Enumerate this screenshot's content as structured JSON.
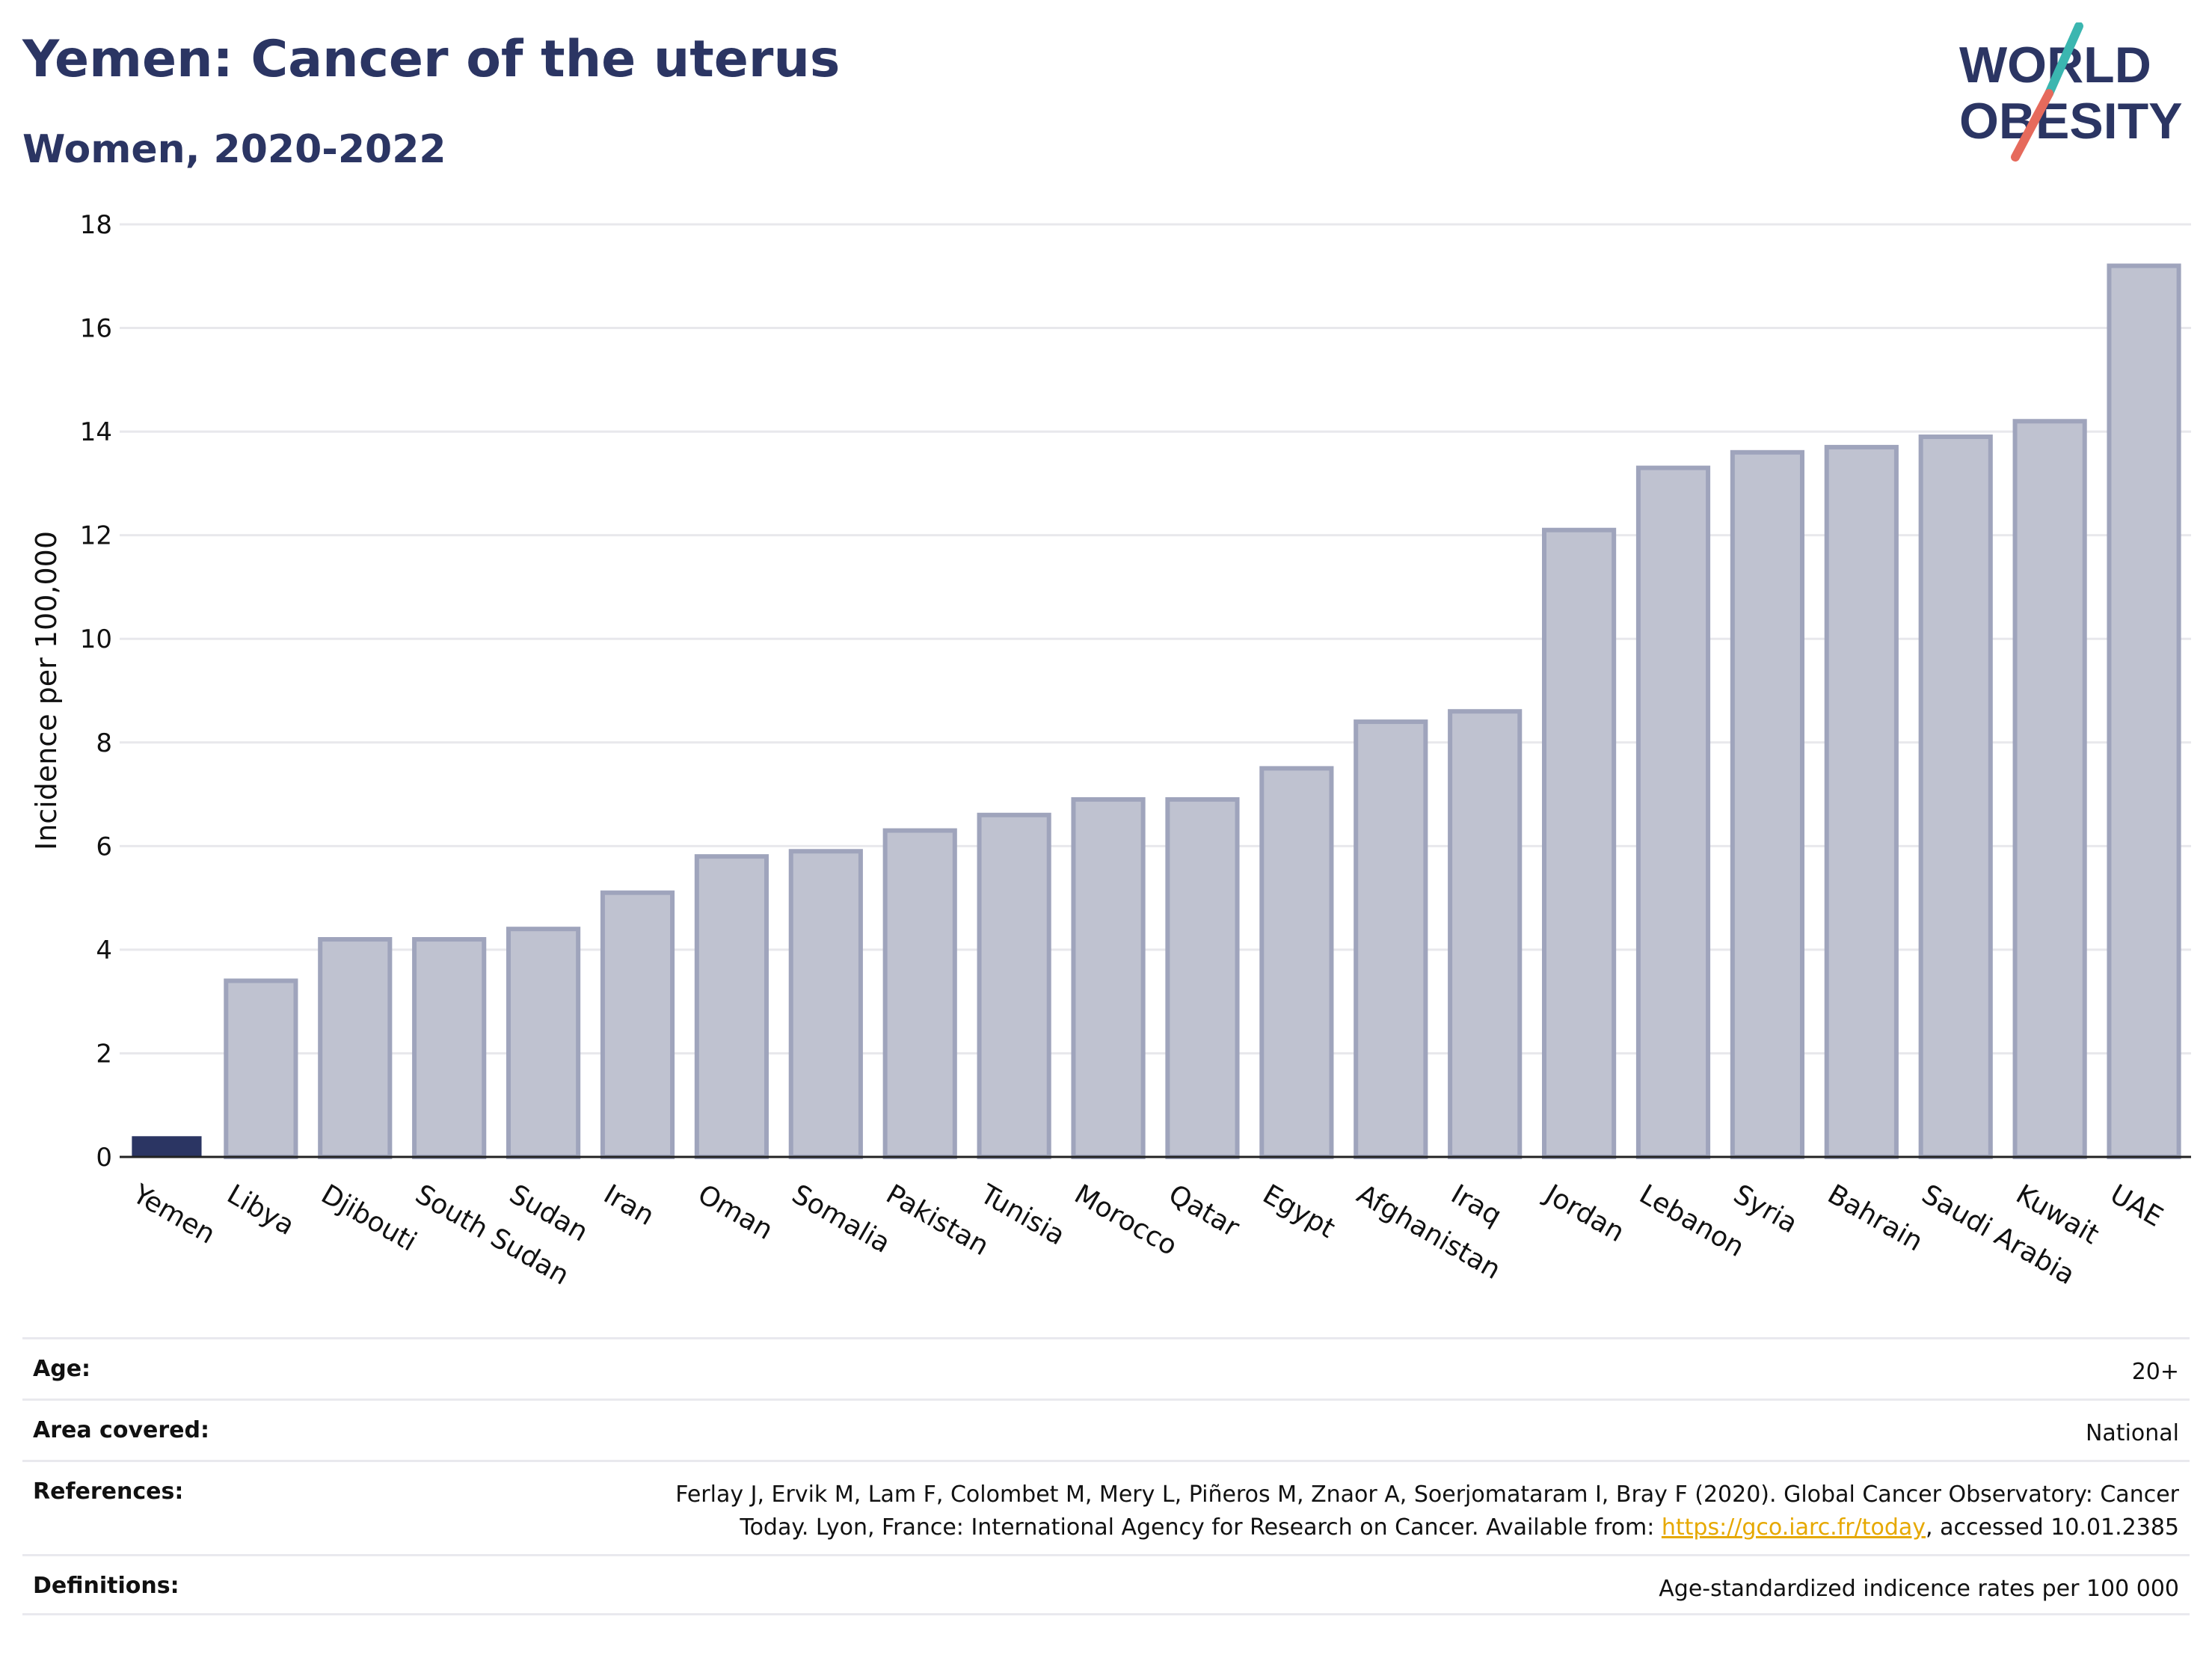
{
  "header": {
    "title": "Yemen: Cancer of the uterus",
    "subtitle": "Women, 2020-2022"
  },
  "logo": {
    "line1": "WORLD",
    "line2": "OBESITY",
    "accent_colors": [
      "#3bb6b0",
      "#e66a5c"
    ]
  },
  "colors": {
    "highlight_bar": "#2b3563",
    "other_bar_fill": "#bfc2d0",
    "other_bar_stroke": "#9fa4bc",
    "title": "#2b3563"
  },
  "chart_data": {
    "type": "bar",
    "ylabel": "Incidence per 100,000",
    "xlabel": "",
    "ylim": [
      0,
      18
    ],
    "yticks": [
      0,
      2,
      4,
      6,
      8,
      10,
      12,
      14,
      16,
      18
    ],
    "grid": true,
    "highlight": "Yemen",
    "categories": [
      "Yemen",
      "Libya",
      "Djibouti",
      "South Sudan",
      "Sudan",
      "Iran",
      "Oman",
      "Somalia",
      "Pakistan",
      "Tunisia",
      "Morocco",
      "Qatar",
      "Egypt",
      "Afghanistan",
      "Iraq",
      "Jordan",
      "Lebanon",
      "Syria",
      "Bahrain",
      "Saudi Arabia",
      "Kuwait",
      "UAE"
    ],
    "values": [
      0.4,
      3.4,
      4.2,
      4.2,
      4.4,
      5.1,
      5.8,
      5.9,
      6.3,
      6.6,
      6.9,
      6.9,
      7.5,
      8.4,
      8.6,
      12.1,
      13.3,
      13.6,
      13.7,
      13.9,
      14.2,
      17.2
    ]
  },
  "info": {
    "age": {
      "label": "Age:",
      "value": "20+"
    },
    "area": {
      "label": "Area covered:",
      "value": "National"
    },
    "references": {
      "label": "References:",
      "line1": "Ferlay J, Ervik M, Lam F, Colombet M, Mery L, Piñeros M, Znaor A, Soerjomataram I, Bray F (2020). Global Cancer Observatory: Cancer",
      "line2_pre": "Today. Lyon, France: International Agency for Research on Cancer. Available from: ",
      "link": "https://gco.iarc.fr/today",
      "line2_post": ", accessed 10.01.2385"
    },
    "definitions": {
      "label": "Definitions:",
      "value": "Age-standardized indicence rates per 100 000"
    }
  }
}
